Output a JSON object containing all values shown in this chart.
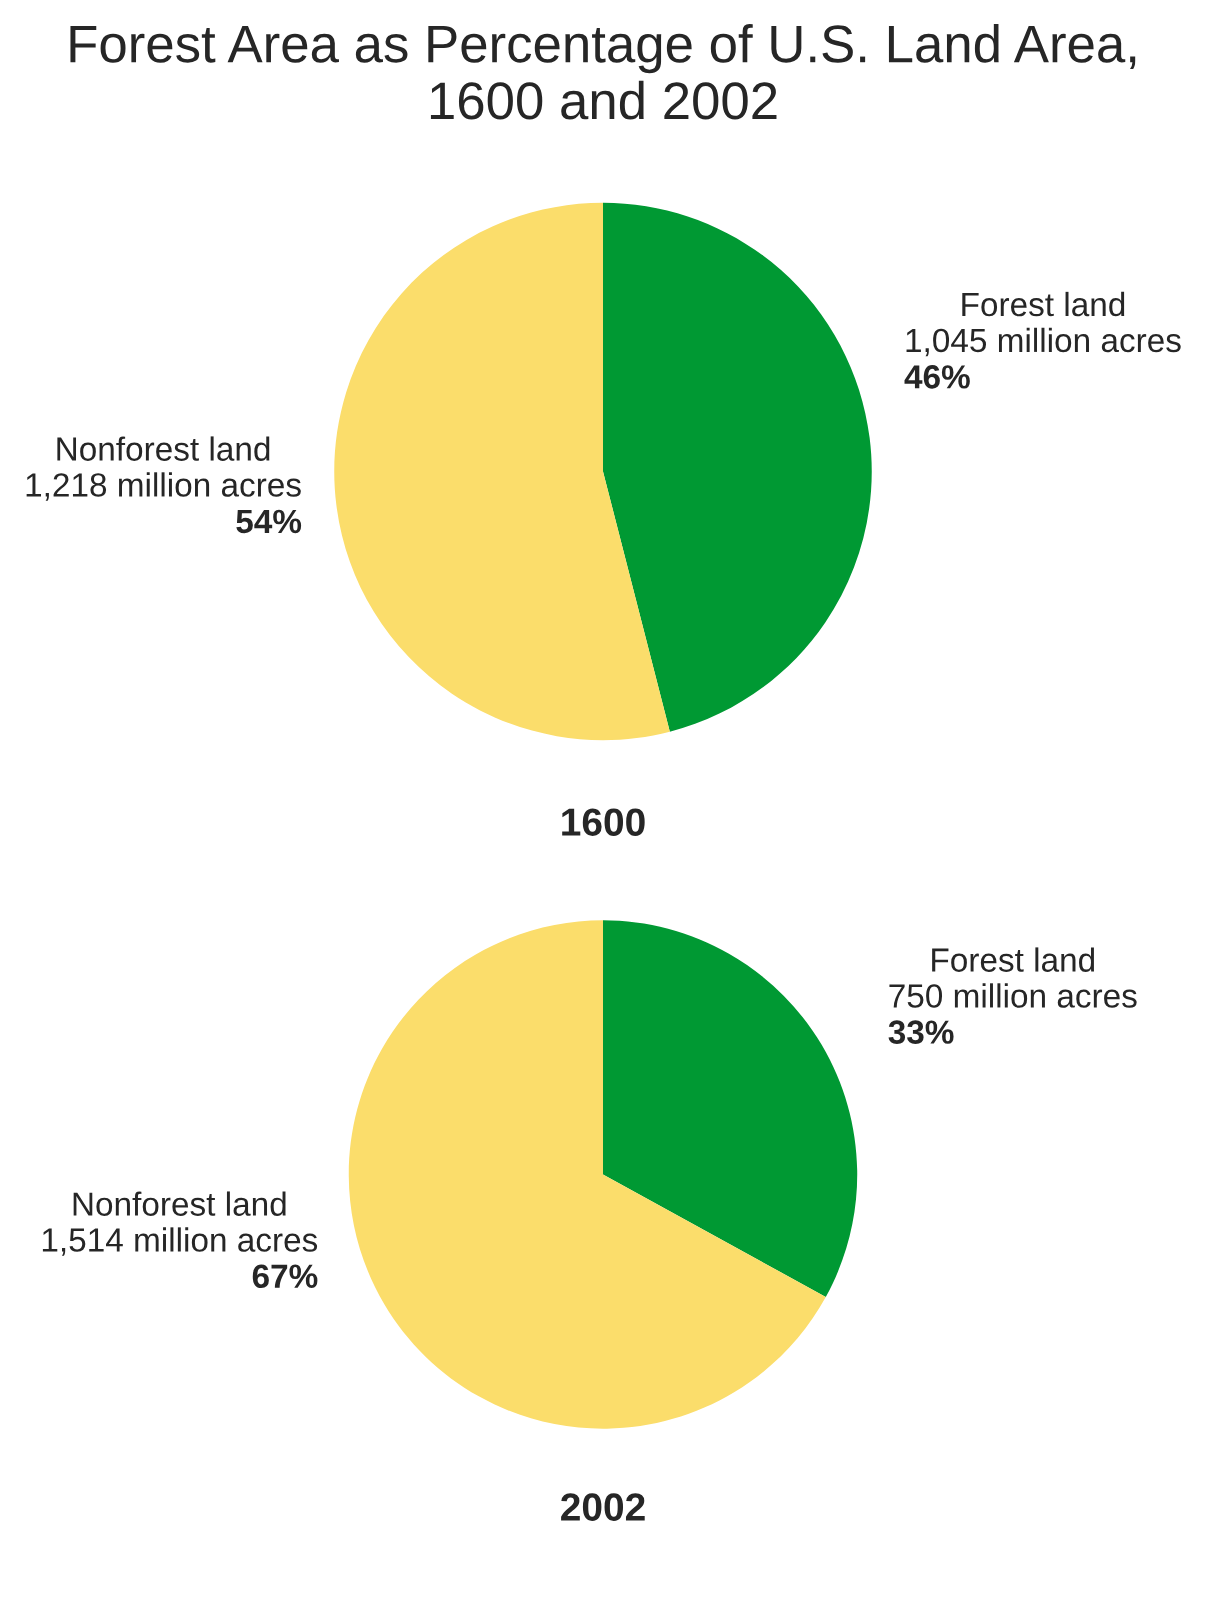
{
  "chart_data": [
    {
      "type": "pie",
      "title": "Forest Area as Percentage of U.S. Land Area,\n1600 and 2002",
      "xlabel": "1600",
      "categories": [
        "Forest land",
        "Nonforest land"
      ],
      "values": [
        46,
        54
      ],
      "colors": [
        "#009933",
        "#fbdd6b"
      ],
      "value_labels": [
        "1,045 million acres\n46%",
        "1,218 million acres\n54%"
      ]
    },
    {
      "type": "pie",
      "xlabel": "2002",
      "categories": [
        "Forest land",
        "Nonforest land"
      ],
      "values": [
        33,
        67
      ],
      "colors": [
        "#009933",
        "#fbdd6b"
      ],
      "value_labels": [
        "750 million acres\n33%",
        "1,514 million acres\n67%"
      ]
    }
  ]
}
